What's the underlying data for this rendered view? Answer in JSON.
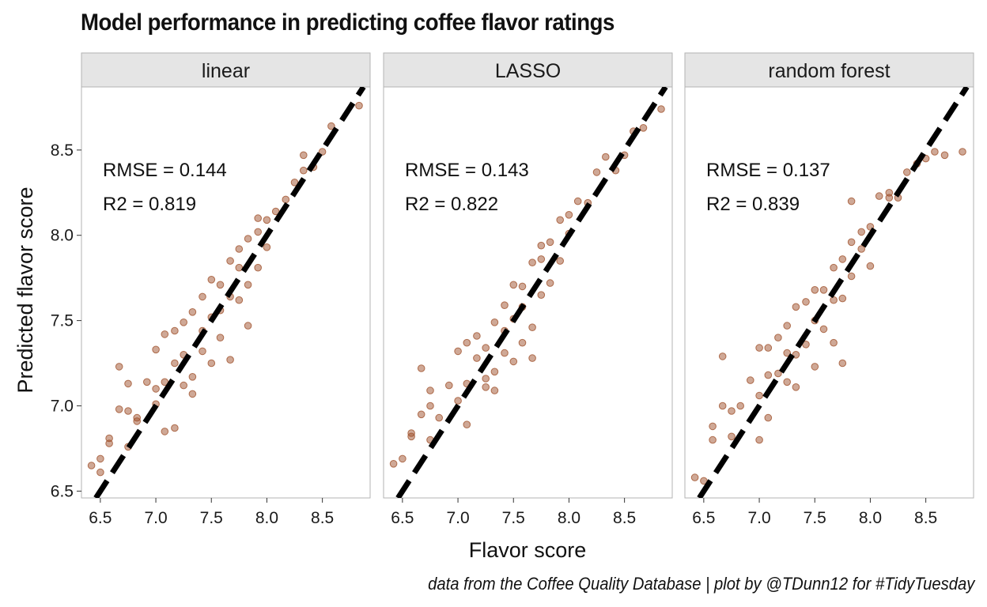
{
  "title": "Model performance in predicting coffee flavor ratings",
  "caption": "data from the Coffee Quality Database | plot by @TDunn12 for #TidyTuesday",
  "colors": {
    "point": "#a0522d",
    "reference_line": "#000000",
    "strip_bg": "#e5e5e5",
    "panel_border": "#b3b3b3"
  },
  "chart_data": {
    "type": "scatter",
    "xlabel": "Flavor score",
    "ylabel": "Predicted flavor score",
    "xlim": [
      6.33,
      8.93
    ],
    "ylim": [
      6.46,
      8.87
    ],
    "x_ticks": [
      6.5,
      7.0,
      7.5,
      8.0,
      8.5
    ],
    "y_ticks": [
      6.5,
      7.0,
      7.5,
      8.0,
      8.5
    ],
    "x_tick_labels": [
      "6.5",
      "7.0",
      "7.5",
      "8.0",
      "8.5"
    ],
    "y_tick_labels": [
      "6.5",
      "7.0",
      "7.5",
      "8.0",
      "8.5"
    ],
    "reference_line": "y = x",
    "grid": false,
    "panels": [
      {
        "label": "linear",
        "rmse": "RMSE = 0.144",
        "r2": "R2 = 0.819",
        "points": [
          [
            6.42,
            6.65
          ],
          [
            6.5,
            6.61
          ],
          [
            6.5,
            6.69
          ],
          [
            6.58,
            6.78
          ],
          [
            6.58,
            6.81
          ],
          [
            6.67,
            7.23
          ],
          [
            6.67,
            6.98
          ],
          [
            6.75,
            6.76
          ],
          [
            6.75,
            6.97
          ],
          [
            6.75,
            7.13
          ],
          [
            6.83,
            6.93
          ],
          [
            6.83,
            6.91
          ],
          [
            6.92,
            7.14
          ],
          [
            7.0,
            7.33
          ],
          [
            7.0,
            7.01
          ],
          [
            7.0,
            7.1
          ],
          [
            7.08,
            6.85
          ],
          [
            7.08,
            7.42
          ],
          [
            7.08,
            7.14
          ],
          [
            7.17,
            7.25
          ],
          [
            7.17,
            7.44
          ],
          [
            7.17,
            6.87
          ],
          [
            7.25,
            7.12
          ],
          [
            7.25,
            7.49
          ],
          [
            7.25,
            7.3
          ],
          [
            7.33,
            7.07
          ],
          [
            7.33,
            7.17
          ],
          [
            7.33,
            7.55
          ],
          [
            7.42,
            7.64
          ],
          [
            7.42,
            7.32
          ],
          [
            7.42,
            7.44
          ],
          [
            7.5,
            7.74
          ],
          [
            7.5,
            7.25
          ],
          [
            7.5,
            7.52
          ],
          [
            7.58,
            7.56
          ],
          [
            7.58,
            7.71
          ],
          [
            7.58,
            7.4
          ],
          [
            7.67,
            7.27
          ],
          [
            7.67,
            7.85
          ],
          [
            7.67,
            7.64
          ],
          [
            7.75,
            7.62
          ],
          [
            7.75,
            7.81
          ],
          [
            7.75,
            7.92
          ],
          [
            7.83,
            7.98
          ],
          [
            7.83,
            7.71
          ],
          [
            7.83,
            7.47
          ],
          [
            7.92,
            8.02
          ],
          [
            7.92,
            8.1
          ],
          [
            7.92,
            7.81
          ],
          [
            8.0,
            8.09
          ],
          [
            8.0,
            7.93
          ],
          [
            8.08,
            8.14
          ],
          [
            8.17,
            8.21
          ],
          [
            8.25,
            8.31
          ],
          [
            8.33,
            8.47
          ],
          [
            8.33,
            8.38
          ],
          [
            8.42,
            8.4
          ],
          [
            8.5,
            8.49
          ],
          [
            8.58,
            8.64
          ],
          [
            8.83,
            8.76
          ]
        ]
      },
      {
        "label": "LASSO",
        "rmse": "RMSE = 0.143",
        "r2": "R2 = 0.822",
        "points": [
          [
            6.42,
            6.66
          ],
          [
            6.5,
            6.69
          ],
          [
            6.58,
            6.82
          ],
          [
            6.58,
            6.84
          ],
          [
            6.67,
            7.22
          ],
          [
            6.67,
            6.95
          ],
          [
            6.75,
            6.8
          ],
          [
            6.75,
            7.0
          ],
          [
            6.75,
            7.09
          ],
          [
            6.83,
            6.93
          ],
          [
            6.92,
            7.12
          ],
          [
            7.0,
            7.03
          ],
          [
            7.0,
            7.32
          ],
          [
            7.08,
            7.13
          ],
          [
            7.08,
            6.89
          ],
          [
            7.08,
            7.37
          ],
          [
            7.17,
            7.28
          ],
          [
            7.17,
            7.41
          ],
          [
            7.25,
            7.16
          ],
          [
            7.25,
            7.34
          ],
          [
            7.25,
            7.11
          ],
          [
            7.33,
            7.09
          ],
          [
            7.33,
            7.49
          ],
          [
            7.33,
            7.2
          ],
          [
            7.42,
            7.59
          ],
          [
            7.42,
            7.44
          ],
          [
            7.42,
            7.31
          ],
          [
            7.5,
            7.71
          ],
          [
            7.5,
            7.51
          ],
          [
            7.5,
            7.26
          ],
          [
            7.58,
            7.58
          ],
          [
            7.58,
            7.37
          ],
          [
            7.58,
            7.7
          ],
          [
            7.67,
            7.84
          ],
          [
            7.67,
            7.46
          ],
          [
            7.67,
            7.28
          ],
          [
            7.75,
            7.65
          ],
          [
            7.75,
            7.86
          ],
          [
            7.75,
            7.94
          ],
          [
            7.83,
            7.96
          ],
          [
            7.83,
            7.72
          ],
          [
            7.92,
            8.09
          ],
          [
            7.92,
            7.85
          ],
          [
            8.0,
            8.12
          ],
          [
            8.0,
            8.01
          ],
          [
            8.08,
            8.2
          ],
          [
            8.17,
            8.19
          ],
          [
            8.25,
            8.37
          ],
          [
            8.33,
            8.46
          ],
          [
            8.42,
            8.38
          ],
          [
            8.5,
            8.47
          ],
          [
            8.58,
            8.61
          ],
          [
            8.67,
            8.63
          ],
          [
            8.83,
            8.74
          ]
        ]
      },
      {
        "label": "random forest",
        "rmse": "RMSE = 0.137",
        "r2": "R2 = 0.839",
        "points": [
          [
            6.42,
            6.58
          ],
          [
            6.5,
            6.56
          ],
          [
            6.58,
            6.8
          ],
          [
            6.58,
            6.88
          ],
          [
            6.67,
            7.29
          ],
          [
            6.67,
            7.0
          ],
          [
            6.75,
            6.82
          ],
          [
            6.75,
            6.97
          ],
          [
            6.83,
            7.0
          ],
          [
            6.92,
            7.15
          ],
          [
            7.0,
            7.34
          ],
          [
            7.0,
            7.06
          ],
          [
            7.0,
            6.8
          ],
          [
            7.08,
            7.34
          ],
          [
            7.08,
            7.18
          ],
          [
            7.08,
            6.93
          ],
          [
            7.17,
            7.4
          ],
          [
            7.17,
            7.19
          ],
          [
            7.25,
            7.47
          ],
          [
            7.25,
            7.31
          ],
          [
            7.25,
            7.14
          ],
          [
            7.33,
            7.11
          ],
          [
            7.33,
            7.58
          ],
          [
            7.33,
            7.3
          ],
          [
            7.42,
            7.61
          ],
          [
            7.42,
            7.36
          ],
          [
            7.5,
            7.68
          ],
          [
            7.5,
            7.5
          ],
          [
            7.5,
            7.23
          ],
          [
            7.58,
            7.68
          ],
          [
            7.58,
            7.45
          ],
          [
            7.67,
            7.81
          ],
          [
            7.67,
            7.62
          ],
          [
            7.67,
            7.37
          ],
          [
            7.75,
            7.86
          ],
          [
            7.75,
            7.63
          ],
          [
            7.75,
            7.25
          ],
          [
            7.83,
            7.96
          ],
          [
            7.83,
            7.76
          ],
          [
            7.83,
            8.2
          ],
          [
            7.92,
            7.92
          ],
          [
            7.92,
            8.02
          ],
          [
            8.0,
            8.05
          ],
          [
            8.0,
            7.82
          ],
          [
            8.08,
            8.23
          ],
          [
            8.17,
            8.25
          ],
          [
            8.17,
            8.22
          ],
          [
            8.25,
            8.22
          ],
          [
            8.33,
            8.37
          ],
          [
            8.42,
            8.42
          ],
          [
            8.5,
            8.45
          ],
          [
            8.58,
            8.49
          ],
          [
            8.67,
            8.47
          ],
          [
            8.83,
            8.49
          ]
        ]
      }
    ]
  }
}
